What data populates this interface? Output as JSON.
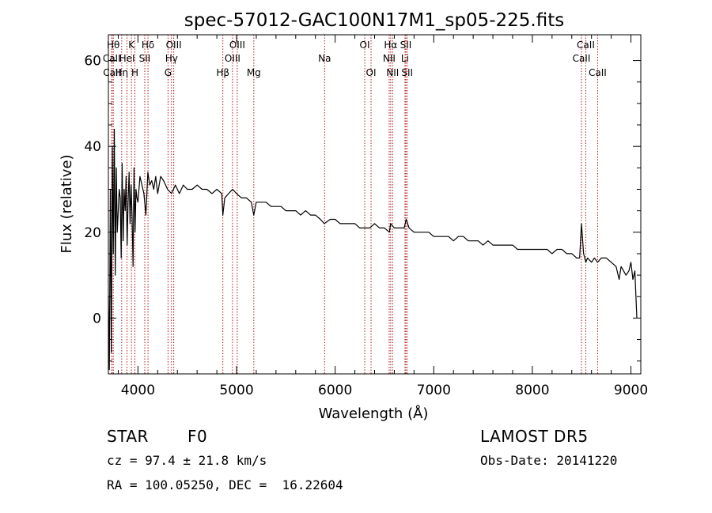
{
  "chart_data": {
    "type": "line",
    "title": "spec-57012-GAC100N17M1_sp05-225.fits",
    "xlabel": "Wavelength (Å)",
    "ylabel": "Flux (relative)",
    "xlim": [
      3700,
      9100
    ],
    "ylim": [
      -13,
      66
    ],
    "x_ticks": [
      "4000",
      "5000",
      "6000",
      "7000",
      "8000",
      "9000"
    ],
    "x_tick_values": [
      4000,
      5000,
      6000,
      7000,
      8000,
      9000
    ],
    "y_ticks": [
      "0",
      "20",
      "40",
      "60"
    ],
    "y_tick_values": [
      0,
      20,
      40,
      60
    ],
    "grid": false,
    "line_color": "#000000",
    "marker_line_color": "#b01818",
    "series": [
      {
        "x": [
          3700,
          3710,
          3720,
          3730,
          3740,
          3750,
          3760,
          3770,
          3780,
          3790,
          3800,
          3810,
          3820,
          3830,
          3840,
          3850,
          3860,
          3870,
          3880,
          3890,
          3900,
          3910,
          3920,
          3930,
          3940,
          3950,
          3960,
          3970,
          3980,
          3990,
          4000,
          4020,
          4040,
          4060,
          4080,
          4100,
          4120,
          4140,
          4160,
          4180,
          4200,
          4230,
          4260,
          4300,
          4340,
          4380,
          4420,
          4460,
          4500,
          4550,
          4600,
          4650,
          4700,
          4750,
          4800,
          4850,
          4861,
          4880,
          4920,
          4960,
          5000,
          5050,
          5100,
          5150,
          5175,
          5200,
          5250,
          5300,
          5350,
          5400,
          5450,
          5500,
          5550,
          5600,
          5650,
          5700,
          5750,
          5800,
          5850,
          5890,
          5950,
          6000,
          6050,
          6100,
          6150,
          6200,
          6250,
          6300,
          6350,
          6400,
          6450,
          6500,
          6550,
          6563,
          6600,
          6650,
          6700,
          6720,
          6750,
          6800,
          6850,
          6900,
          6950,
          7000,
          7050,
          7100,
          7150,
          7200,
          7250,
          7300,
          7350,
          7400,
          7450,
          7500,
          7550,
          7600,
          7650,
          7700,
          7750,
          7800,
          7850,
          7900,
          7950,
          8000,
          8050,
          8100,
          8150,
          8200,
          8250,
          8300,
          8350,
          8400,
          8450,
          8480,
          8498,
          8520,
          8542,
          8560,
          8600,
          8630,
          8662,
          8700,
          8750,
          8800,
          8850,
          8880,
          8900,
          8950,
          8980,
          9000,
          9020,
          9040,
          9060
        ],
        "values": [
          5,
          -12,
          30,
          -8,
          40,
          15,
          44,
          10,
          35,
          20,
          25,
          30,
          28,
          14,
          36,
          18,
          30,
          25,
          33,
          17,
          27,
          34,
          22,
          31,
          24,
          12,
          35,
          20,
          30,
          28,
          27,
          33,
          31,
          29,
          24,
          34,
          31,
          32,
          30,
          33,
          29,
          33,
          32,
          30,
          29,
          31,
          29,
          31,
          30,
          30,
          31,
          30,
          30,
          29,
          30,
          29,
          24,
          28,
          29,
          30,
          29,
          28,
          28,
          27,
          24,
          27,
          27,
          27,
          26,
          26,
          26,
          25,
          25,
          25,
          24,
          25,
          24,
          24,
          23,
          22,
          23,
          23,
          22,
          22,
          22,
          22,
          21,
          21,
          21,
          22,
          21,
          21,
          20,
          22,
          21,
          21,
          21,
          23,
          21,
          20,
          20,
          20,
          20,
          19,
          19,
          19,
          19,
          18,
          19,
          19,
          18,
          18,
          18,
          17,
          18,
          17,
          17,
          17,
          17,
          17,
          16,
          16,
          16,
          16,
          16,
          16,
          16,
          15,
          16,
          16,
          15,
          15,
          14,
          14,
          22,
          15,
          13,
          14,
          13,
          14,
          13,
          14,
          14,
          13,
          12,
          9,
          12,
          10,
          11,
          13,
          9,
          11,
          0
        ]
      }
    ],
    "lines": [
      {
        "name": "Hθ",
        "x": 3750,
        "row": 0
      },
      {
        "name": "CaII",
        "x": 3734,
        "row": 1
      },
      {
        "name": "CaII",
        "x": 3737,
        "row": 2
      },
      {
        "name": "Hη",
        "x": 3835,
        "row": 2
      },
      {
        "name": "HeI",
        "x": 3889,
        "row": 1
      },
      {
        "name": "K",
        "x": 3934,
        "row": 0
      },
      {
        "name": "H",
        "x": 3969,
        "row": 2
      },
      {
        "name": "SII",
        "x": 4069,
        "row": 1
      },
      {
        "name": "Hδ",
        "x": 4102,
        "row": 0
      },
      {
        "name": "OIII",
        "x": 4363,
        "row": 0
      },
      {
        "name": "Hγ",
        "x": 4340,
        "row": 1
      },
      {
        "name": "G",
        "x": 4305,
        "row": 2
      },
      {
        "name": "Hβ",
        "x": 4861,
        "row": 2
      },
      {
        "name": "OIII",
        "x": 5007,
        "row": 0
      },
      {
        "name": "OIII",
        "x": 4959,
        "row": 1
      },
      {
        "name": "Mg",
        "x": 5175,
        "row": 2
      },
      {
        "name": "Na",
        "x": 5893,
        "row": 1
      },
      {
        "name": "OI",
        "x": 6300,
        "row": 0
      },
      {
        "name": "OI",
        "x": 6364,
        "row": 2
      },
      {
        "name": "Hα",
        "x": 6563,
        "row": 0
      },
      {
        "name": "NII",
        "x": 6548,
        "row": 1
      },
      {
        "name": "NII",
        "x": 6583,
        "row": 2
      },
      {
        "name": "SII",
        "x": 6717,
        "row": 0
      },
      {
        "name": "Li",
        "x": 6708,
        "row": 1
      },
      {
        "name": "SII",
        "x": 6731,
        "row": 2
      },
      {
        "name": "CaII",
        "x": 8542,
        "row": 0
      },
      {
        "name": "CaII",
        "x": 8498,
        "row": 1
      },
      {
        "name": "CaII",
        "x": 8662,
        "row": 2
      }
    ]
  },
  "info": {
    "object_class": "STAR",
    "subclass": "F0",
    "survey": "LAMOST DR5",
    "redshift": "cz = 97.4 ± 21.8 km/s",
    "obs_date": "Obs-Date: 20141220",
    "coords": "RA = 100.05250, DEC =  16.22604"
  }
}
